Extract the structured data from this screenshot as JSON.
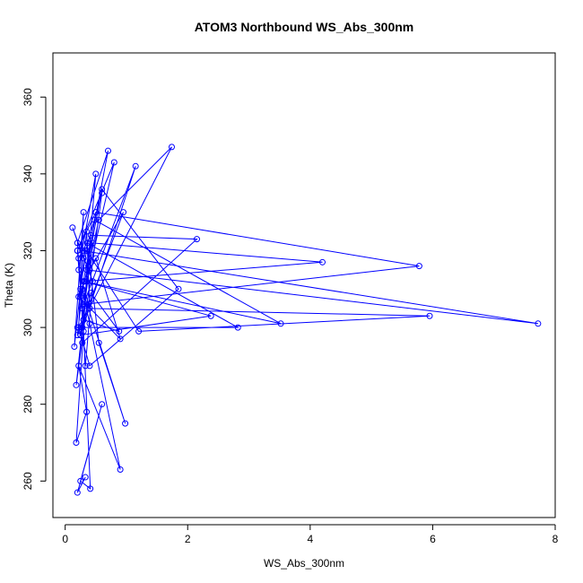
{
  "chart_data": {
    "type": "line",
    "title": "ATOM3 Northbound WS_Abs_300nm",
    "xlabel": "WS_Abs_300nm",
    "ylabel": "Theta (K)",
    "xlim": [
      -0.2,
      8.0
    ],
    "ylim": [
      250.5,
      371.5
    ],
    "x_ticks": [
      0,
      2,
      4,
      6,
      8
    ],
    "y_ticks": [
      260,
      280,
      300,
      320,
      340,
      360
    ],
    "grid": false,
    "legend": "none",
    "color": "#0000ff",
    "series": [
      {
        "marker": "open-circle",
        "x": [
          0.2,
          0.25,
          0.3,
          0.15,
          0.35,
          0.4,
          0.22,
          0.5,
          0.28,
          0.18,
          0.6,
          0.3,
          0.12,
          0.45,
          0.33,
          0.2,
          0.7,
          0.25,
          0.38,
          0.55,
          1.74,
          0.3,
          0.22,
          0.42,
          2.15,
          0.28,
          0.35,
          0.8,
          0.2,
          0.5,
          5.78,
          0.3,
          1.15,
          0.25,
          0.45,
          4.2,
          0.32,
          0.6,
          1.85,
          0.4,
          0.22,
          0.28,
          7.72,
          0.35,
          0.48,
          3.52,
          0.3,
          0.2,
          0.95,
          0.4,
          0.27,
          5.95,
          1.2,
          0.35,
          0.22,
          0.9,
          0.5,
          0.3,
          2.38,
          0.25,
          0.42,
          0.88,
          0.3,
          0.2,
          2.82,
          0.36,
          0.55,
          0.98,
          0.28,
          0.4,
          0.9,
          0.22,
          0.35,
          0.18,
          0.3,
          0.41,
          0.25,
          0.6,
          0.2,
          0.33
        ],
        "y": [
          320,
          310,
          330,
          295,
          325,
          305,
          315,
          340,
          300,
          285,
          335,
          318,
          326,
          312,
          290,
          322,
          346,
          308,
          316,
          328,
          347,
          302,
          318,
          324,
          323,
          296,
          312,
          343,
          320,
          330,
          316,
          306,
          342,
          298,
          322,
          317,
          312,
          336,
          310,
          290,
          300,
          320,
          301,
          315,
          328,
          301,
          312,
          298,
          330,
          315,
          305,
          303,
          299,
          320,
          308,
          297,
          318,
          312,
          303,
          298,
          309,
          299,
          302,
          300,
          300,
          322,
          296,
          275,
          310,
          301,
          263,
          290,
          278,
          270,
          299,
          258,
          260,
          280,
          257,
          261
        ]
      }
    ]
  }
}
